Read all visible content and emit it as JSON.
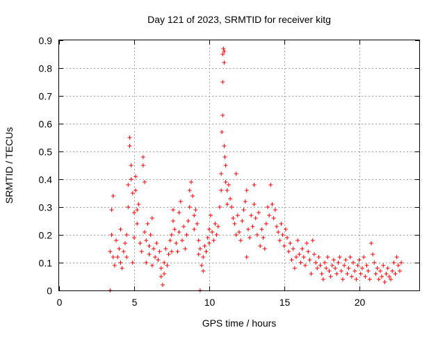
{
  "chart_data": {
    "type": "scatter",
    "title": "Day 121 of 2023, SRMTID for receiver kitg",
    "xlabel": "GPS time / hours",
    "ylabel": "SRMTID / TECUs",
    "xlim": [
      0,
      24
    ],
    "ylim": [
      0,
      0.9
    ],
    "xticks": [
      0,
      5,
      10,
      15,
      20
    ],
    "xtick_labels": [
      "0",
      "5",
      "10",
      "15",
      "20"
    ],
    "yticks": [
      0,
      0.1,
      0.2,
      0.3,
      0.4,
      0.5,
      0.6,
      0.7,
      0.8,
      0.9
    ],
    "ytick_labels": [
      "0",
      "0.1",
      "0.2",
      "0.3",
      "0.4",
      "0.5",
      "0.6",
      "0.7",
      "0.8",
      "0.9"
    ],
    "grid": true,
    "marker": "plus",
    "color": "#ff0000",
    "series": [
      {
        "name": "SRMTID",
        "points": [
          [
            3.4,
            0.0
          ],
          [
            9.4,
            0.0
          ],
          [
            3.4,
            0.14
          ],
          [
            3.5,
            0.2
          ],
          [
            3.5,
            0.29
          ],
          [
            3.6,
            0.34
          ],
          [
            3.6,
            0.12
          ],
          [
            3.7,
            0.09
          ],
          [
            3.8,
            0.18
          ],
          [
            3.9,
            0.12
          ],
          [
            4.0,
            0.15
          ],
          [
            4.1,
            0.22
          ],
          [
            4.1,
            0.1
          ],
          [
            4.2,
            0.08
          ],
          [
            4.3,
            0.14
          ],
          [
            4.4,
            0.17
          ],
          [
            4.5,
            0.12
          ],
          [
            4.5,
            0.2
          ],
          [
            4.6,
            0.38
          ],
          [
            4.6,
            0.3
          ],
          [
            4.7,
            0.55
          ],
          [
            4.7,
            0.52
          ],
          [
            4.8,
            0.45
          ],
          [
            4.8,
            0.4
          ],
          [
            4.9,
            0.35
          ],
          [
            4.9,
            0.1
          ],
          [
            5.0,
            0.28
          ],
          [
            5.0,
            0.19
          ],
          [
            5.1,
            0.41
          ],
          [
            5.1,
            0.36
          ],
          [
            5.2,
            0.29
          ],
          [
            5.2,
            0.24
          ],
          [
            5.3,
            0.31
          ],
          [
            5.4,
            0.17
          ],
          [
            5.5,
            0.14
          ],
          [
            5.6,
            0.48
          ],
          [
            5.6,
            0.45
          ],
          [
            5.7,
            0.39
          ],
          [
            5.7,
            0.21
          ],
          [
            5.8,
            0.18
          ],
          [
            5.8,
            0.1
          ],
          [
            5.9,
            0.24
          ],
          [
            6.0,
            0.16
          ],
          [
            6.0,
            0.13
          ],
          [
            6.1,
            0.2
          ],
          [
            6.2,
            0.26
          ],
          [
            6.2,
            0.09
          ],
          [
            6.3,
            0.15
          ],
          [
            6.4,
            0.12
          ],
          [
            6.5,
            0.17
          ],
          [
            6.6,
            0.11
          ],
          [
            6.7,
            0.14
          ],
          [
            6.8,
            0.08
          ],
          [
            6.8,
            0.05
          ],
          [
            6.9,
            0.02
          ],
          [
            7.0,
            0.06
          ],
          [
            7.0,
            0.1
          ],
          [
            7.1,
            0.15
          ],
          [
            7.2,
            0.09
          ],
          [
            7.3,
            0.13
          ],
          [
            7.4,
            0.18
          ],
          [
            7.5,
            0.2
          ],
          [
            7.5,
            0.14
          ],
          [
            7.6,
            0.29
          ],
          [
            7.6,
            0.25
          ],
          [
            7.7,
            0.22
          ],
          [
            7.8,
            0.17
          ],
          [
            7.9,
            0.14
          ],
          [
            8.0,
            0.21
          ],
          [
            8.0,
            0.28
          ],
          [
            8.1,
            0.32
          ],
          [
            8.2,
            0.18
          ],
          [
            8.3,
            0.23
          ],
          [
            8.4,
            0.15
          ],
          [
            8.5,
            0.2
          ],
          [
            8.6,
            0.25
          ],
          [
            8.7,
            0.36
          ],
          [
            8.7,
            0.3
          ],
          [
            8.8,
            0.39
          ],
          [
            8.9,
            0.34
          ],
          [
            9.0,
            0.27
          ],
          [
            9.0,
            0.22
          ],
          [
            9.1,
            0.29
          ],
          [
            9.2,
            0.24
          ],
          [
            9.3,
            0.18
          ],
          [
            9.3,
            0.13
          ],
          [
            9.4,
            0.15
          ],
          [
            9.5,
            0.09
          ],
          [
            9.6,
            0.07
          ],
          [
            9.6,
            0.12
          ],
          [
            9.7,
            0.16
          ],
          [
            9.8,
            0.14
          ],
          [
            9.9,
            0.19
          ],
          [
            10.0,
            0.22
          ],
          [
            10.0,
            0.17
          ],
          [
            10.1,
            0.27
          ],
          [
            10.2,
            0.21
          ],
          [
            10.3,
            0.18
          ],
          [
            10.4,
            0.24
          ],
          [
            10.5,
            0.2
          ],
          [
            10.6,
            0.23
          ],
          [
            10.7,
            0.3
          ],
          [
            10.8,
            0.42
          ],
          [
            10.8,
            0.36
          ],
          [
            10.85,
            0.57
          ],
          [
            10.9,
            0.63
          ],
          [
            10.9,
            0.75
          ],
          [
            10.9,
            0.85
          ],
          [
            10.95,
            0.87
          ],
          [
            11.0,
            0.86
          ],
          [
            11.0,
            0.82
          ],
          [
            11.0,
            0.52
          ],
          [
            11.05,
            0.48
          ],
          [
            11.1,
            0.45
          ],
          [
            11.1,
            0.39
          ],
          [
            11.2,
            0.31
          ],
          [
            11.2,
            0.36
          ],
          [
            11.3,
            0.38
          ],
          [
            11.4,
            0.33
          ],
          [
            11.5,
            0.3
          ],
          [
            11.6,
            0.26
          ],
          [
            11.7,
            0.24
          ],
          [
            11.8,
            0.42
          ],
          [
            11.8,
            0.2
          ],
          [
            11.9,
            0.27
          ],
          [
            12.0,
            0.21
          ],
          [
            12.1,
            0.18
          ],
          [
            12.2,
            0.25
          ],
          [
            12.3,
            0.29
          ],
          [
            12.4,
            0.32
          ],
          [
            12.5,
            0.36
          ],
          [
            12.5,
            0.12
          ],
          [
            12.6,
            0.22
          ],
          [
            12.7,
            0.19
          ],
          [
            12.8,
            0.27
          ],
          [
            12.9,
            0.23
          ],
          [
            13.0,
            0.38
          ],
          [
            13.0,
            0.31
          ],
          [
            13.1,
            0.26
          ],
          [
            13.2,
            0.2
          ],
          [
            13.3,
            0.28
          ],
          [
            13.4,
            0.16
          ],
          [
            13.5,
            0.22
          ],
          [
            13.6,
            0.19
          ],
          [
            13.7,
            0.15
          ],
          [
            13.8,
            0.24
          ],
          [
            13.9,
            0.3
          ],
          [
            14.0,
            0.27
          ],
          [
            14.1,
            0.38
          ],
          [
            14.2,
            0.31
          ],
          [
            14.3,
            0.26
          ],
          [
            14.4,
            0.29
          ],
          [
            14.5,
            0.23
          ],
          [
            14.6,
            0.21
          ],
          [
            14.7,
            0.18
          ],
          [
            14.8,
            0.24
          ],
          [
            14.9,
            0.2
          ],
          [
            15.0,
            0.16
          ],
          [
            15.1,
            0.22
          ],
          [
            15.2,
            0.19
          ],
          [
            15.3,
            0.14
          ],
          [
            15.4,
            0.17
          ],
          [
            15.5,
            0.11
          ],
          [
            15.6,
            0.15
          ],
          [
            15.7,
            0.08
          ],
          [
            15.8,
            0.12
          ],
          [
            15.9,
            0.18
          ],
          [
            16.0,
            0.13
          ],
          [
            16.1,
            0.1
          ],
          [
            16.2,
            0.15
          ],
          [
            16.3,
            0.12
          ],
          [
            16.4,
            0.09
          ],
          [
            16.5,
            0.17
          ],
          [
            16.6,
            0.14
          ],
          [
            16.7,
            0.11
          ],
          [
            16.8,
            0.06
          ],
          [
            16.9,
            0.18
          ],
          [
            17.0,
            0.13
          ],
          [
            17.1,
            0.1
          ],
          [
            17.2,
            0.08
          ],
          [
            17.3,
            0.12
          ],
          [
            17.4,
            0.09
          ],
          [
            17.5,
            0.06
          ],
          [
            17.6,
            0.04
          ],
          [
            17.7,
            0.1
          ],
          [
            17.8,
            0.08
          ],
          [
            17.9,
            0.12
          ],
          [
            18.0,
            0.07
          ],
          [
            18.1,
            0.05
          ],
          [
            18.2,
            0.09
          ],
          [
            18.3,
            0.11
          ],
          [
            18.4,
            0.08
          ],
          [
            18.5,
            0.06
          ],
          [
            18.6,
            0.1
          ],
          [
            18.7,
            0.12
          ],
          [
            18.8,
            0.07
          ],
          [
            18.9,
            0.04
          ],
          [
            19.0,
            0.09
          ],
          [
            19.1,
            0.11
          ],
          [
            19.2,
            0.06
          ],
          [
            19.3,
            0.08
          ],
          [
            19.4,
            0.12
          ],
          [
            19.5,
            0.05
          ],
          [
            19.6,
            0.1
          ],
          [
            19.7,
            0.07
          ],
          [
            19.8,
            0.04
          ],
          [
            19.9,
            0.09
          ],
          [
            20.0,
            0.11
          ],
          [
            20.1,
            0.06
          ],
          [
            20.2,
            0.08
          ],
          [
            20.3,
            0.12
          ],
          [
            20.4,
            0.05
          ],
          [
            20.5,
            0.09
          ],
          [
            20.6,
            0.07
          ],
          [
            20.7,
            0.04
          ],
          [
            20.8,
            0.17
          ],
          [
            20.9,
            0.13
          ],
          [
            21.0,
            0.1
          ],
          [
            21.1,
            0.06
          ],
          [
            21.2,
            0.08
          ],
          [
            21.3,
            0.04
          ],
          [
            21.4,
            0.07
          ],
          [
            21.5,
            0.05
          ],
          [
            21.6,
            0.09
          ],
          [
            21.7,
            0.03
          ],
          [
            21.8,
            0.06
          ],
          [
            21.9,
            0.08
          ],
          [
            22.0,
            0.05
          ],
          [
            22.1,
            0.04
          ],
          [
            22.2,
            0.07
          ],
          [
            22.3,
            0.1
          ],
          [
            22.4,
            0.06
          ],
          [
            22.5,
            0.12
          ],
          [
            22.6,
            0.09
          ],
          [
            22.7,
            0.07
          ],
          [
            22.8,
            0.1
          ]
        ]
      }
    ]
  }
}
